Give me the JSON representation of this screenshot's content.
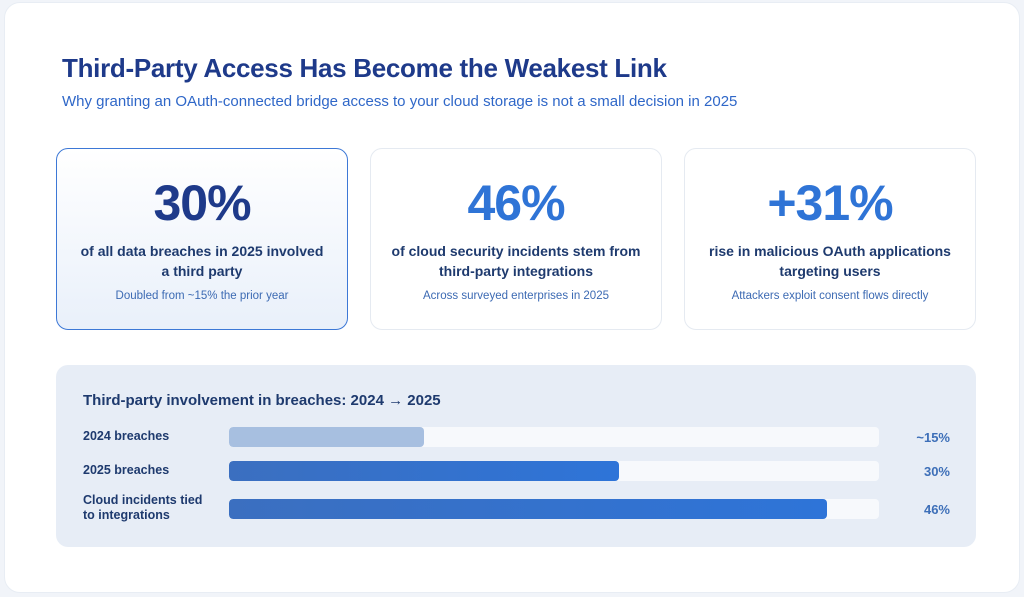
{
  "header": {
    "title": "Third-Party Access Has Become the Weakest Link",
    "subtitle": "Why granting an OAuth-connected bridge access to your cloud storage is not a small decision in 2025"
  },
  "cards": [
    {
      "stat": "30%",
      "description": "of all data breaches in 2025 involved a third party",
      "note": "Doubled from ~15% the prior year",
      "highlighted": true
    },
    {
      "stat": "46%",
      "description": "of cloud security incidents stem from third-party integrations",
      "note": "Across surveyed enterprises in 2025",
      "highlighted": false
    },
    {
      "stat": "+31%",
      "description": "rise in malicious OAuth applications targeting users",
      "note": "Attackers exploit consent flows directly",
      "highlighted": false
    }
  ],
  "colors": {
    "title": "#1e3a8a",
    "accent": "#2f74d6",
    "bar_2024": "#a7bfe0",
    "bar_main_start": "#3b6fc0",
    "bar_main_end": "#2e74d8"
  },
  "chart_data": {
    "type": "bar",
    "orientation": "horizontal",
    "title": "Third-party involvement in breaches: 2024 → 2025",
    "categories": [
      "2024 breaches",
      "2025 breaches",
      "Cloud incidents tied to integrations"
    ],
    "category_lines": [
      [
        "2024 breaches"
      ],
      [
        "2025 breaches"
      ],
      [
        "Cloud incidents tied",
        "to integrations"
      ]
    ],
    "values": [
      15,
      30,
      46
    ],
    "value_labels": [
      "~15%",
      "30%",
      "46%"
    ],
    "xlim": [
      0,
      50
    ],
    "grid": false,
    "legend": "none"
  }
}
